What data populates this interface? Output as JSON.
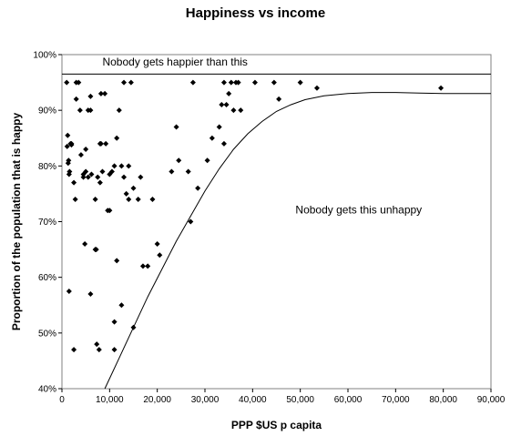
{
  "chart_data": {
    "type": "scatter",
    "title": "Happiness vs income",
    "xlabel": "PPP $US p capita",
    "ylabel": "Proportion of the population that is happy",
    "xlim": [
      0,
      90000
    ],
    "ylim": [
      40,
      100
    ],
    "x_ticks": [
      "0",
      "10,000",
      "20,000",
      "30,000",
      "40,000",
      "50,000",
      "60,000",
      "70,000",
      "80,000",
      "90,000"
    ],
    "y_ticks": [
      "40%",
      "50%",
      "60%",
      "70%",
      "80%",
      "90%",
      "100%"
    ],
    "grid": false,
    "annotations": [
      {
        "text": "Nobody gets happier than this",
        "x": 8500,
        "y": 98
      },
      {
        "text": "Nobody gets this unhappy",
        "x": 49000,
        "y": 71.5
      }
    ],
    "ceiling_line": {
      "y": 96.5
    },
    "floor_curve": {
      "x": [
        9000,
        12000,
        15000,
        18000,
        21000,
        24000,
        27000,
        30000,
        33000,
        36000,
        39000,
        42000,
        45000,
        48000,
        51000,
        55000,
        60000,
        65000,
        70000,
        75000,
        80000,
        85000,
        90000
      ],
      "y": [
        40,
        45.5,
        51,
        56.5,
        61.5,
        66.5,
        71,
        75.5,
        79.5,
        83,
        85.8,
        88,
        89.8,
        91,
        91.9,
        92.6,
        93,
        93.2,
        93.2,
        93.1,
        93,
        93,
        93
      ]
    },
    "points": {
      "x": [
        1000,
        1200,
        1100,
        1300,
        1500,
        1600,
        1800,
        2000,
        2500,
        3000,
        3500,
        3800,
        4000,
        4500,
        5000,
        5500,
        6000,
        1400,
        3000,
        5500,
        6200,
        7000,
        7300,
        7800,
        8000,
        8200,
        8500,
        9200,
        9600,
        10000,
        10500,
        11000,
        11500,
        12000,
        12500,
        13000,
        13500,
        14000,
        14500,
        15000,
        16000,
        16500,
        17000,
        18000,
        19000,
        20000,
        20500,
        23000,
        24000,
        24500,
        26500,
        27000,
        27500,
        28500,
        30500,
        31500,
        33000,
        33500,
        34000,
        34500,
        35000,
        35500,
        36000,
        36500,
        37000,
        37500,
        40500,
        44500,
        45500,
        50000,
        53500,
        79500,
        1500,
        2800,
        4800,
        6000,
        7000,
        7200,
        8000,
        11000,
        11500,
        12500,
        15000,
        34000,
        5000,
        7500,
        9000,
        10000,
        2500,
        13000,
        11000,
        6000,
        4500,
        8200,
        2000,
        14000
      ],
      "y": [
        95,
        85.5,
        83.5,
        80.5,
        78.5,
        79,
        84,
        83.8,
        77,
        95,
        95,
        90,
        82,
        78.5,
        83,
        90,
        92.5,
        81,
        92,
        78,
        78.5,
        74,
        48,
        47,
        84,
        93,
        79,
        84,
        72,
        72,
        79,
        80,
        85,
        90,
        80,
        78,
        75,
        74,
        95,
        51,
        74,
        78,
        62,
        62,
        74,
        66,
        64,
        79,
        87,
        81,
        79,
        70,
        95,
        76,
        81,
        85,
        87,
        91,
        84,
        91,
        93,
        95,
        90,
        95,
        95,
        90,
        95,
        95,
        92,
        95,
        94,
        94,
        57.5,
        74,
        66,
        57,
        65,
        65,
        77,
        52,
        63,
        55,
        76,
        95,
        79,
        78,
        93,
        78.5,
        47,
        95,
        47,
        90,
        78,
        84,
        84,
        80
      ]
    }
  }
}
